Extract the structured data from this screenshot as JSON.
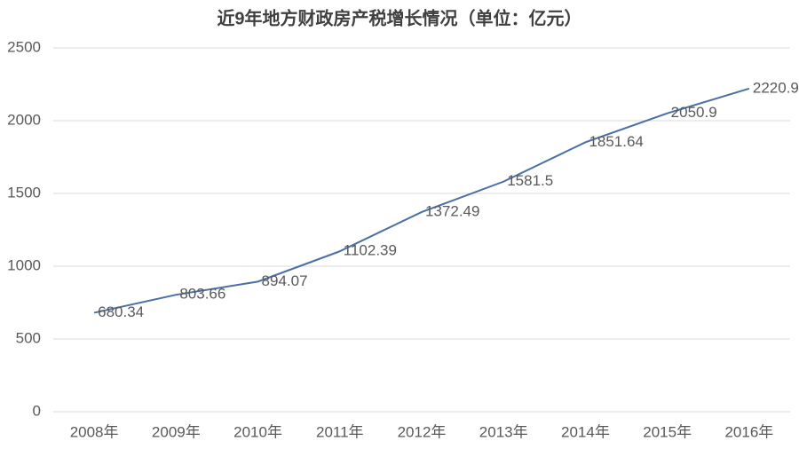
{
  "chart_data": {
    "type": "line",
    "title": "近9年地方财政房产税增长情况（单位：亿元）",
    "categories": [
      "2008年",
      "2009年",
      "2010年",
      "2011年",
      "2012年",
      "2013年",
      "2014年",
      "2015年",
      "2016年"
    ],
    "values": [
      680.34,
      803.66,
      894.07,
      1102.39,
      1372.49,
      1581.5,
      1851.64,
      2050.9,
      2220.91
    ],
    "color": "#4a6fa5",
    "ylim": [
      0,
      2500
    ],
    "yticks": [
      0,
      500,
      1000,
      1500,
      2000,
      2500
    ],
    "grid": true
  }
}
